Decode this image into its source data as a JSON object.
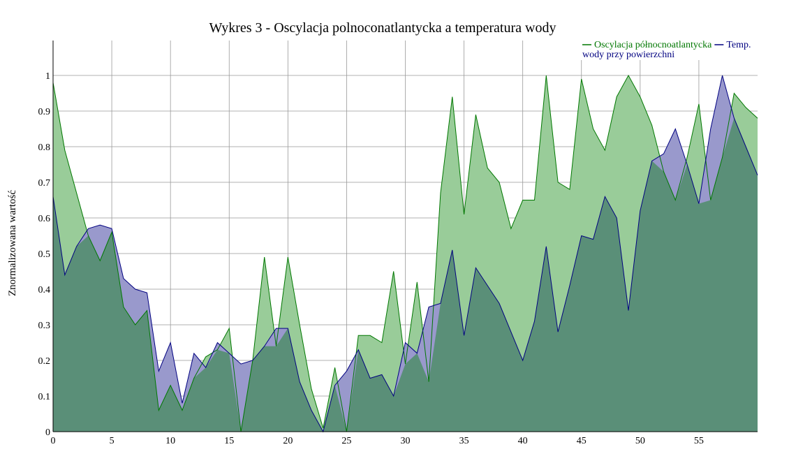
{
  "chart_data": {
    "type": "area",
    "title": "Wykres 3 - Oscylacja polnoconatlantycka a temperatura wody",
    "xlabel": "",
    "ylabel": "Znormalizowana wartość",
    "xlim": [
      0,
      60
    ],
    "ylim": [
      0,
      1
    ],
    "xticks": [
      "0",
      "5",
      "10",
      "15",
      "20",
      "25",
      "30",
      "35",
      "40",
      "45",
      "50",
      "55"
    ],
    "yticks": [
      "0",
      "0.1",
      "0.2",
      "0.3",
      "0.4",
      "0.5",
      "0.6",
      "0.7",
      "0.8",
      "0.9",
      "1"
    ],
    "grid": true,
    "legend_position": "top-right",
    "x": [
      0,
      1,
      2,
      3,
      4,
      5,
      6,
      7,
      8,
      9,
      10,
      11,
      12,
      13,
      14,
      15,
      16,
      17,
      18,
      19,
      20,
      21,
      22,
      23,
      24,
      25,
      26,
      27,
      28,
      29,
      30,
      31,
      32,
      33,
      34,
      35,
      36,
      37,
      38,
      39,
      40,
      41,
      42,
      43,
      44,
      45,
      46,
      47,
      48,
      49,
      50,
      51,
      52,
      53,
      54,
      55,
      56,
      57,
      58,
      59,
      60
    ],
    "series": [
      {
        "name": "Oscylacja północnoatlantycka",
        "color": "#007700",
        "fill": "#99cc99",
        "values": [
          0.98,
          0.79,
          0.67,
          0.55,
          0.48,
          0.56,
          0.35,
          0.3,
          0.34,
          0.06,
          0.13,
          0.06,
          0.15,
          0.21,
          0.23,
          0.29,
          0.0,
          0.2,
          0.49,
          0.24,
          0.49,
          0.3,
          0.12,
          0.01,
          0.18,
          0.0,
          0.27,
          0.27,
          0.25,
          0.45,
          0.19,
          0.42,
          0.14,
          0.67,
          0.94,
          0.61,
          0.89,
          0.74,
          0.7,
          0.57,
          0.65,
          0.65,
          1.0,
          0.7,
          0.68,
          0.99,
          0.85,
          0.79,
          0.94,
          1.0,
          0.94,
          0.86,
          0.73,
          0.65,
          0.77,
          0.92,
          0.65,
          0.77,
          0.95,
          0.91,
          0.88
        ]
      },
      {
        "name": "Temp. wody przy powierzchni",
        "color": "#000080",
        "fill": "#9999cc",
        "values": [
          0.66,
          0.44,
          0.52,
          0.57,
          0.58,
          0.57,
          0.43,
          0.4,
          0.39,
          0.17,
          0.25,
          0.08,
          0.22,
          0.18,
          0.25,
          0.22,
          0.19,
          0.2,
          0.24,
          0.29,
          0.29,
          0.14,
          0.06,
          0.0,
          0.13,
          0.17,
          0.23,
          0.15,
          0.16,
          0.1,
          0.25,
          0.22,
          0.35,
          0.36,
          0.51,
          0.27,
          0.46,
          0.41,
          0.36,
          0.28,
          0.2,
          0.31,
          0.52,
          0.28,
          0.41,
          0.55,
          0.54,
          0.66,
          0.6,
          0.34,
          0.62,
          0.76,
          0.78,
          0.85,
          0.75,
          0.64,
          0.85,
          1.0,
          0.88,
          0.8,
          0.72
        ]
      }
    ]
  }
}
